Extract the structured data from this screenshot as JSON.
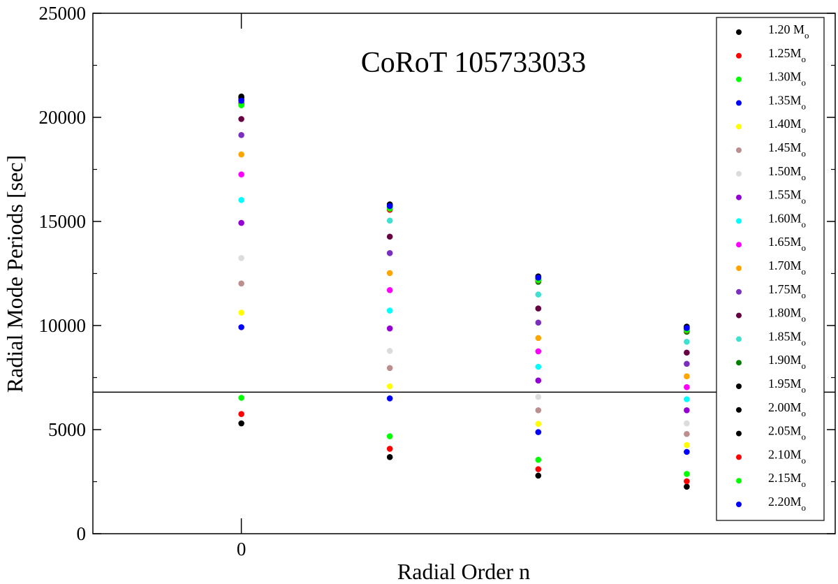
{
  "chart_data": {
    "type": "scatter",
    "title": "CoRoT 105733033",
    "xlabel": "Radial Order n",
    "ylabel": "Radial Mode Periods [sec]",
    "xlim": [
      -1,
      4
    ],
    "ylim": [
      0,
      25000
    ],
    "x_tick_labels": [
      {
        "x": 0,
        "label": "0"
      }
    ],
    "y_ticks": [
      0,
      5000,
      10000,
      15000,
      20000,
      25000
    ],
    "y_tick_labels": [
      "0",
      "5000",
      "10000",
      "15000",
      "20000",
      "25000"
    ],
    "hline": 6800,
    "legend_position": "right",
    "series": [
      {
        "name": "1.20 M",
        "sub": "o",
        "color": "#000000",
        "points": [
          [
            0,
            5300
          ],
          [
            1,
            3680
          ],
          [
            2,
            2790
          ],
          [
            3,
            2260
          ]
        ]
      },
      {
        "name": "1.25M",
        "sub": "o",
        "color": "#ff0000",
        "points": [
          [
            0,
            5750
          ],
          [
            1,
            4080
          ],
          [
            2,
            3100
          ],
          [
            3,
            2520
          ]
        ]
      },
      {
        "name": "1.30M",
        "sub": "o",
        "color": "#00ff00",
        "points": [
          [
            0,
            6530
          ],
          [
            1,
            4680
          ],
          [
            2,
            3550
          ],
          [
            3,
            2870
          ]
        ]
      },
      {
        "name": "1.35M",
        "sub": "o",
        "color": "#0000ff",
        "points": [
          [
            0,
            9920
          ],
          [
            1,
            6500
          ],
          [
            2,
            4880
          ],
          [
            3,
            3930
          ]
        ]
      },
      {
        "name": "1.40M",
        "sub": "o",
        "color": "#ffff00",
        "points": [
          [
            0,
            10620
          ],
          [
            1,
            7080
          ],
          [
            2,
            5280
          ],
          [
            3,
            4260
          ]
        ]
      },
      {
        "name": "1.45M",
        "sub": "o",
        "color": "#bc8f8f",
        "points": [
          [
            0,
            12020
          ],
          [
            1,
            7960
          ],
          [
            2,
            5930
          ],
          [
            3,
            4790
          ]
        ]
      },
      {
        "name": "1.50M",
        "sub": "o",
        "color": "#dcdcdc",
        "points": [
          [
            0,
            13240
          ],
          [
            1,
            8780
          ],
          [
            2,
            6570
          ],
          [
            3,
            5300
          ]
        ]
      },
      {
        "name": "1.55M",
        "sub": "o",
        "color": "#9400d3",
        "points": [
          [
            0,
            14930
          ],
          [
            1,
            9860
          ],
          [
            2,
            7360
          ],
          [
            3,
            5930
          ]
        ]
      },
      {
        "name": "1.60M",
        "sub": "o",
        "color": "#00ffff",
        "points": [
          [
            0,
            16030
          ],
          [
            1,
            10720
          ],
          [
            2,
            8020
          ],
          [
            3,
            6460
          ]
        ]
      },
      {
        "name": "1.65M",
        "sub": "o",
        "color": "#ff00ff",
        "points": [
          [
            0,
            17260
          ],
          [
            1,
            11700
          ],
          [
            2,
            8760
          ],
          [
            3,
            7040
          ]
        ]
      },
      {
        "name": "1.70M",
        "sub": "o",
        "color": "#ffa500",
        "points": [
          [
            0,
            18220
          ],
          [
            1,
            12520
          ],
          [
            2,
            9400
          ],
          [
            3,
            7560
          ]
        ]
      },
      {
        "name": "1.75M",
        "sub": "o",
        "color": "#7b2fbe",
        "points": [
          [
            0,
            19150
          ],
          [
            1,
            13480
          ],
          [
            2,
            10140
          ],
          [
            3,
            8160
          ]
        ]
      },
      {
        "name": "1.80M",
        "sub": "o",
        "color": "#670040",
        "points": [
          [
            0,
            19920
          ],
          [
            1,
            14270
          ],
          [
            2,
            10820
          ],
          [
            3,
            8700
          ]
        ]
      },
      {
        "name": "1.85M",
        "sub": "o",
        "color": "#40e0d0",
        "points": [
          [
            0,
            20600
          ],
          [
            1,
            15040
          ],
          [
            2,
            11490
          ],
          [
            3,
            9220
          ]
        ]
      },
      {
        "name": "1.90M",
        "sub": "o",
        "color": "#008000",
        "points": [
          [
            0,
            20700
          ],
          [
            1,
            15620
          ],
          [
            2,
            12100
          ],
          [
            3,
            9700
          ]
        ]
      },
      {
        "name": "1.95M",
        "sub": "o",
        "color": "#000000",
        "points": [
          [
            0,
            20850
          ],
          [
            1,
            15720
          ],
          [
            2,
            12250
          ],
          [
            3,
            9820
          ]
        ]
      },
      {
        "name": "2.00M",
        "sub": "o",
        "color": "#000000",
        "points": [
          [
            0,
            20950
          ],
          [
            1,
            15780
          ],
          [
            2,
            12330
          ],
          [
            3,
            9900
          ]
        ]
      },
      {
        "name": "2.05M",
        "sub": "o",
        "color": "#000000",
        "points": [
          [
            0,
            21000
          ],
          [
            1,
            15820
          ],
          [
            2,
            12360
          ],
          [
            3,
            9950
          ]
        ]
      },
      {
        "name": "2.10M",
        "sub": "o",
        "color": "#ff0000",
        "points": [
          [
            0,
            20620
          ],
          [
            1,
            15560
          ],
          [
            2,
            12160
          ],
          [
            3,
            9760
          ]
        ]
      },
      {
        "name": "2.15M",
        "sub": "o",
        "color": "#00ff00",
        "points": [
          [
            0,
            20580
          ],
          [
            1,
            15620
          ],
          [
            2,
            12180
          ],
          [
            3,
            9780
          ]
        ]
      },
      {
        "name": "2.20M",
        "sub": "o",
        "color": "#0000ff",
        "points": [
          [
            0,
            20800
          ],
          [
            1,
            15740
          ],
          [
            2,
            12300
          ],
          [
            3,
            9880
          ]
        ]
      }
    ]
  }
}
